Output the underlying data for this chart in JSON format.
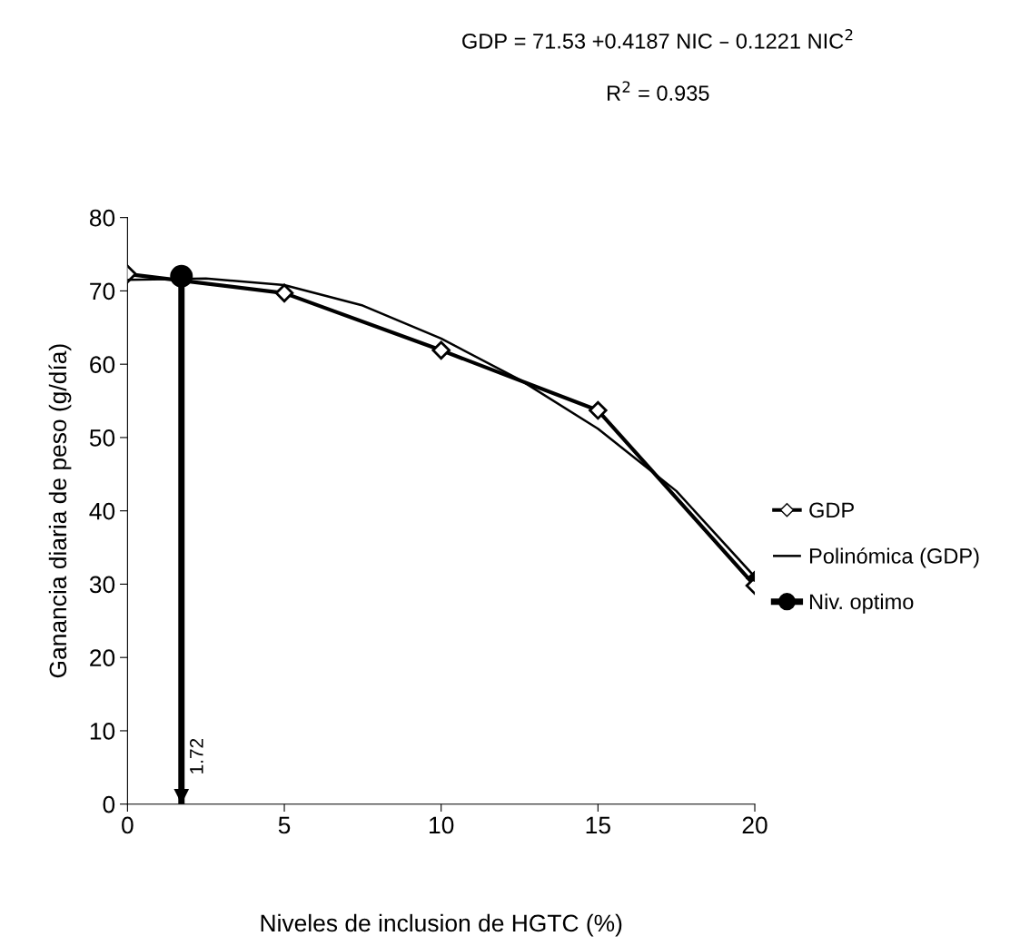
{
  "chart_data": {
    "type": "line",
    "xlabel": "Niveles de inclusion de HGTC (%)",
    "ylabel": "Ganancia diaria de peso (g/día)",
    "xlim": [
      0,
      20
    ],
    "xticks": [
      0,
      5,
      10,
      15,
      20
    ],
    "ylim": [
      0,
      80
    ],
    "yticks": [
      0,
      10,
      20,
      30,
      40,
      50,
      60,
      70,
      80
    ],
    "grid": false,
    "legend": "right",
    "annotations": [
      "GDP = 71.53 +0.4187 NIC – 0.1221 NIC$^{2}$",
      "R$^{2}$ = 0.935",
      {
        "text": "1.72",
        "x": 1.72,
        "y": 0
      }
    ],
    "series": [
      {
        "name": "GDP",
        "color": "#000000",
        "marker": "diamond",
        "x": [
          0,
          5,
          10,
          15,
          20
        ],
        "values": [
          72.3,
          69.7,
          61.9,
          53.7,
          29.8
        ]
      },
      {
        "name": "Polinómica (GDP)",
        "color": "#000000",
        "marker": "none",
        "x": [
          0,
          2.5,
          5,
          7.5,
          10,
          12.5,
          15,
          17.5,
          20
        ],
        "values": [
          71.5,
          71.7,
          70.8,
          68.0,
          63.5,
          57.9,
          51.2,
          42.7,
          31.0
        ]
      },
      {
        "name": "Niv. optimo",
        "color": "#000000",
        "marker": "circle",
        "x": [
          1.72,
          1.72
        ],
        "values": [
          72.0,
          0
        ]
      }
    ]
  }
}
